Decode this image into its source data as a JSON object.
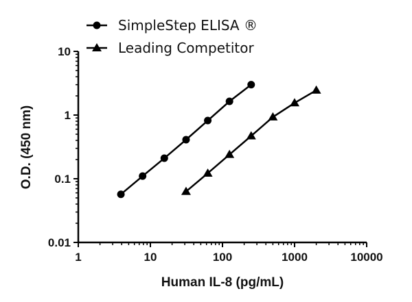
{
  "chart_data": {
    "type": "line",
    "title": "",
    "xlabel": "Human IL-8 (pg/mL)",
    "ylabel": "O.D. (450 nm)",
    "xscale": "log",
    "yscale": "log",
    "xlim": [
      1,
      10000
    ],
    "ylim": [
      0.01,
      10
    ],
    "xticks": [
      "1",
      "10",
      "100",
      "1000",
      "10000"
    ],
    "yticks": [
      "0.01",
      "0.1",
      "1",
      "10"
    ],
    "grid": false,
    "legend_position": "top-left, above plot",
    "series": [
      {
        "name": "SimpleStep ELISA ®",
        "marker": "circle",
        "color": "#000000",
        "x": [
          3.9,
          7.8,
          15.6,
          31.25,
          62.5,
          125,
          250
        ],
        "y": [
          0.057,
          0.11,
          0.21,
          0.41,
          0.82,
          1.64,
          3.0
        ]
      },
      {
        "name": "Leading Competitor",
        "marker": "triangle",
        "color": "#000000",
        "x": [
          31.25,
          62.5,
          125,
          250,
          500,
          1000,
          2000
        ],
        "y": [
          0.063,
          0.122,
          0.24,
          0.47,
          0.93,
          1.55,
          2.45
        ]
      }
    ]
  }
}
